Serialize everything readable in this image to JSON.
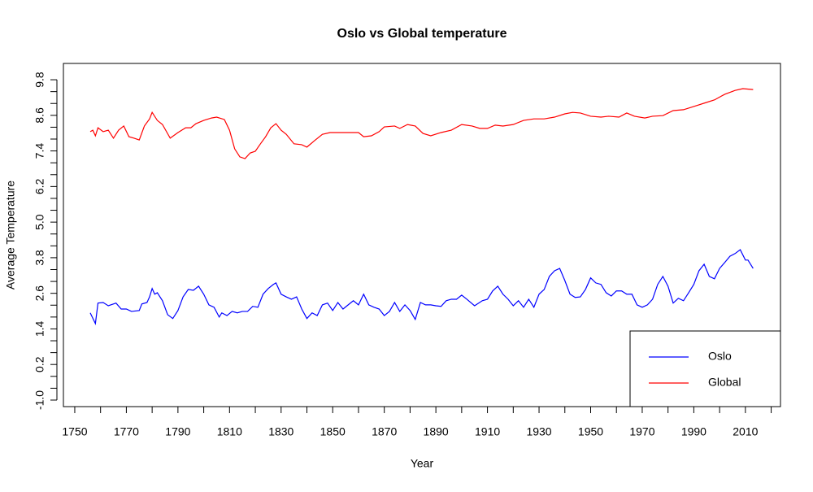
{
  "chart_data": {
    "type": "line",
    "title": "Oslo vs Global temperature",
    "x_label": "Year",
    "y_label": "Average Temperature",
    "xlim": [
      1745.6,
      2023.6
    ],
    "ylim": [
      -1.22,
      10.35
    ],
    "xticks": [
      1750,
      1770,
      1790,
      1810,
      1830,
      1850,
      1870,
      1890,
      1910,
      1930,
      1950,
      1970,
      1990,
      2010
    ],
    "xminorticks": [
      1760,
      1780,
      1800,
      1820,
      1840,
      1860,
      1880,
      1900,
      1920,
      1940,
      1960,
      1980,
      2000,
      2020
    ],
    "yticks": [
      {
        "value": -1.0,
        "label": "-1.0"
      },
      0.2,
      1.4,
      2.6,
      3.8,
      {
        "value": 5.0,
        "label": "5.0"
      },
      6.2,
      7.4,
      8.6,
      9.8
    ],
    "yminorticks": [
      -0.6,
      -0.2,
      0.6,
      1.0,
      1.8,
      2.2,
      3.0,
      3.4,
      4.2,
      4.6,
      5.4,
      5.8,
      6.6,
      7.0,
      7.8,
      8.2,
      9.0,
      9.4
    ],
    "legend_position": "bottom-right",
    "series": [
      {
        "name": "Oslo",
        "color": "#0000ff",
        "x": [
          1756,
          1758,
          1759,
          1761,
          1763,
          1766,
          1768,
          1770,
          1772,
          1775,
          1776,
          1778,
          1779,
          1780,
          1781,
          1782,
          1784,
          1786,
          1788,
          1790,
          1792,
          1794,
          1796,
          1798,
          1800,
          1802,
          1804,
          1806,
          1807,
          1809,
          1811,
          1813,
          1815,
          1817,
          1819,
          1821,
          1823,
          1825,
          1827,
          1828,
          1830,
          1832,
          1834,
          1836,
          1838,
          1840,
          1842,
          1844,
          1846,
          1848,
          1850,
          1852,
          1854,
          1856,
          1858,
          1860,
          1862,
          1864,
          1866,
          1868,
          1870,
          1872,
          1874,
          1876,
          1878,
          1880,
          1882,
          1884,
          1886,
          1888,
          1890,
          1892,
          1894,
          1896,
          1898,
          1900,
          1902,
          1905,
          1908,
          1910,
          1912,
          1914,
          1916,
          1918,
          1920,
          1922,
          1924,
          1926,
          1928,
          1930,
          1932,
          1934,
          1936,
          1938,
          1940,
          1942,
          1944,
          1946,
          1948,
          1950,
          1952,
          1954,
          1956,
          1958,
          1960,
          1962,
          1964,
          1966,
          1968,
          1970,
          1972,
          1974,
          1976,
          1978,
          1980,
          1982,
          1984,
          1986,
          1988,
          1990,
          1992,
          1994,
          1996,
          1998,
          2000,
          2002,
          2004,
          2006,
          2008,
          2010,
          2011,
          2013
        ],
        "values": [
          1.94,
          1.58,
          2.27,
          2.29,
          2.18,
          2.27,
          2.07,
          2.07,
          1.99,
          2.02,
          2.24,
          2.29,
          2.48,
          2.76,
          2.57,
          2.62,
          2.35,
          1.88,
          1.75,
          2.02,
          2.48,
          2.73,
          2.7,
          2.84,
          2.57,
          2.21,
          2.13,
          1.8,
          1.94,
          1.85,
          1.99,
          1.94,
          1.99,
          1.99,
          2.16,
          2.13,
          2.57,
          2.76,
          2.9,
          2.95,
          2.57,
          2.48,
          2.4,
          2.48,
          2.07,
          1.75,
          1.94,
          1.85,
          2.21,
          2.27,
          2.02,
          2.29,
          2.07,
          2.21,
          2.35,
          2.21,
          2.57,
          2.21,
          2.13,
          2.07,
          1.85,
          1.99,
          2.29,
          1.99,
          2.21,
          2.02,
          1.72,
          2.29,
          2.21,
          2.21,
          2.18,
          2.16,
          2.35,
          2.4,
          2.4,
          2.54,
          2.4,
          2.18,
          2.35,
          2.4,
          2.68,
          2.84,
          2.57,
          2.4,
          2.18,
          2.35,
          2.13,
          2.4,
          2.13,
          2.57,
          2.73,
          3.17,
          3.36,
          3.44,
          3.03,
          2.57,
          2.46,
          2.48,
          2.73,
          3.12,
          2.95,
          2.9,
          2.62,
          2.51,
          2.68,
          2.68,
          2.57,
          2.57,
          2.21,
          2.13,
          2.21,
          2.4,
          2.9,
          3.17,
          2.84,
          2.27,
          2.43,
          2.35,
          2.62,
          2.9,
          3.36,
          3.58,
          3.17,
          3.09,
          3.44,
          3.64,
          3.85,
          3.94,
          4.07,
          3.72,
          3.72,
          3.44
        ]
      },
      {
        "name": "Global",
        "color": "#ff0000",
        "x": [
          1756,
          1757,
          1758,
          1759,
          1761,
          1763,
          1765,
          1767,
          1769,
          1771,
          1773,
          1775,
          1777,
          1779,
          1780,
          1782,
          1784,
          1787,
          1790,
          1793,
          1795,
          1797,
          1800,
          1803,
          1805,
          1808,
          1810,
          1812,
          1814,
          1816,
          1818,
          1820,
          1822,
          1824,
          1826,
          1828,
          1830,
          1832,
          1835,
          1838,
          1840,
          1843,
          1846,
          1849,
          1852,
          1856,
          1860,
          1862,
          1865,
          1868,
          1870,
          1874,
          1876,
          1879,
          1882,
          1885,
          1888,
          1892,
          1896,
          1900,
          1904,
          1907,
          1910,
          1913,
          1916,
          1920,
          1924,
          1928,
          1932,
          1936,
          1940,
          1943,
          1946,
          1950,
          1954,
          1957,
          1961,
          1964,
          1967,
          1971,
          1974,
          1978,
          1982,
          1986,
          1990,
          1994,
          1998,
          2002,
          2006,
          2009,
          2013
        ],
        "values": [
          8.05,
          8.1,
          7.91,
          8.18,
          8.05,
          8.1,
          7.83,
          8.1,
          8.24,
          7.88,
          7.83,
          7.77,
          8.24,
          8.48,
          8.7,
          8.43,
          8.29,
          7.83,
          8.02,
          8.18,
          8.18,
          8.32,
          8.43,
          8.51,
          8.54,
          8.46,
          8.1,
          7.47,
          7.2,
          7.14,
          7.33,
          7.39,
          7.64,
          7.88,
          8.18,
          8.32,
          8.1,
          7.96,
          7.64,
          7.61,
          7.53,
          7.75,
          7.96,
          8.02,
          8.02,
          8.02,
          8.02,
          7.88,
          7.91,
          8.05,
          8.21,
          8.24,
          8.16,
          8.29,
          8.24,
          7.99,
          7.91,
          8.02,
          8.1,
          8.29,
          8.24,
          8.16,
          8.16,
          8.27,
          8.24,
          8.29,
          8.43,
          8.48,
          8.48,
          8.54,
          8.65,
          8.7,
          8.68,
          8.57,
          8.54,
          8.57,
          8.54,
          8.68,
          8.57,
          8.51,
          8.57,
          8.59,
          8.76,
          8.79,
          8.9,
          9.01,
          9.12,
          9.31,
          9.44,
          9.5,
          9.47
        ]
      }
    ]
  }
}
